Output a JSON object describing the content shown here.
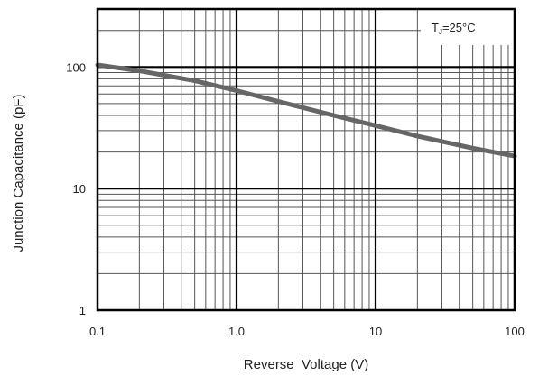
{
  "chart_data": {
    "type": "line",
    "xscale": "log",
    "yscale": "log",
    "xlim": [
      0.1,
      100
    ],
    "ylim": [
      1,
      300
    ],
    "xlabel": "Reverse  Voltage (V)",
    "ylabel": "Junction Capacitance (pF)",
    "x_ticks": [
      "0.1",
      "1.0",
      "10",
      "100"
    ],
    "y_ticks": [
      "1",
      "10",
      "100"
    ],
    "grid": true,
    "annotation": {
      "main": "T",
      "sub": "J",
      "rest": "=25°C"
    },
    "series": [
      {
        "x": [
          0.1,
          0.2,
          0.5,
          1,
          2,
          5,
          10,
          20,
          50,
          100
        ],
        "y": [
          104,
          93,
          77,
          64,
          52,
          40,
          33,
          27,
          21.5,
          18.5
        ]
      }
    ],
    "colors": {
      "curve": "#666666",
      "grid": "#555555",
      "frame": "#000000"
    }
  }
}
